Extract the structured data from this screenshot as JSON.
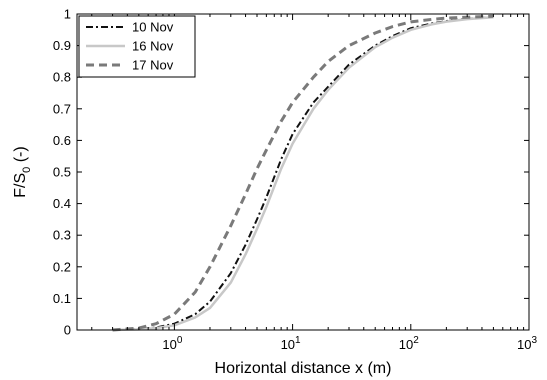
{
  "chart_data": {
    "type": "line",
    "xscale": "log",
    "xlabel": "Horizontal distance x (m)",
    "ylabel": {
      "prefix": "F/S",
      "sub": "0",
      "suffix": " (-)"
    },
    "xlim": [
      0.15,
      1000
    ],
    "ylim": [
      0,
      1
    ],
    "x_ticks": [
      {
        "value": 1,
        "base": "10",
        "exp": "0"
      },
      {
        "value": 10,
        "base": "10",
        "exp": "1"
      },
      {
        "value": 100,
        "base": "10",
        "exp": "2"
      },
      {
        "value": 1000,
        "base": "10",
        "exp": "3"
      }
    ],
    "y_ticks": [
      0,
      0.1,
      0.2,
      0.3,
      0.4,
      0.5,
      0.6,
      0.7,
      0.8,
      0.9,
      1
    ],
    "y_tick_labels": [
      "0",
      "0.1",
      "0.2",
      "0.3",
      "0.4",
      "0.5",
      "0.6",
      "0.7",
      "0.8",
      "0.9",
      "1"
    ],
    "grid": false,
    "legend_position": "top-left",
    "series": [
      {
        "name": "10 Nov",
        "color": "#111111",
        "style": "dashdot",
        "x": [
          0.3,
          0.5,
          0.7,
          1.0,
          1.5,
          2.0,
          3.0,
          4.0,
          5.0,
          6.0,
          8.0,
          10,
          15,
          20,
          30,
          50,
          70,
          100,
          150,
          200,
          300,
          500
        ],
        "y": [
          0.0,
          0.003,
          0.008,
          0.02,
          0.05,
          0.09,
          0.18,
          0.27,
          0.35,
          0.42,
          0.54,
          0.62,
          0.72,
          0.77,
          0.84,
          0.9,
          0.93,
          0.955,
          0.97,
          0.978,
          0.985,
          0.99
        ]
      },
      {
        "name": "16 Nov",
        "color": "#c8c8c8",
        "style": "solid",
        "x": [
          0.3,
          0.5,
          0.7,
          1.0,
          1.5,
          2.0,
          3.0,
          4.0,
          5.0,
          6.0,
          8.0,
          10,
          15,
          20,
          30,
          50,
          70,
          100,
          150,
          200,
          300,
          500
        ],
        "y": [
          0.0,
          0.002,
          0.006,
          0.015,
          0.04,
          0.07,
          0.15,
          0.24,
          0.32,
          0.39,
          0.51,
          0.59,
          0.7,
          0.76,
          0.83,
          0.895,
          0.925,
          0.95,
          0.967,
          0.976,
          0.984,
          0.99
        ]
      },
      {
        "name": "17 Nov",
        "color": "#7a7a7a",
        "style": "dashed",
        "x": [
          0.3,
          0.5,
          0.7,
          1.0,
          1.5,
          2.0,
          3.0,
          4.0,
          5.0,
          6.0,
          8.0,
          10,
          15,
          20,
          30,
          50,
          70,
          100,
          150,
          200,
          300,
          500
        ],
        "y": [
          0.0,
          0.006,
          0.02,
          0.05,
          0.12,
          0.2,
          0.33,
          0.43,
          0.51,
          0.57,
          0.66,
          0.72,
          0.8,
          0.85,
          0.9,
          0.94,
          0.96,
          0.975,
          0.983,
          0.987,
          0.99,
          0.993
        ]
      }
    ]
  }
}
